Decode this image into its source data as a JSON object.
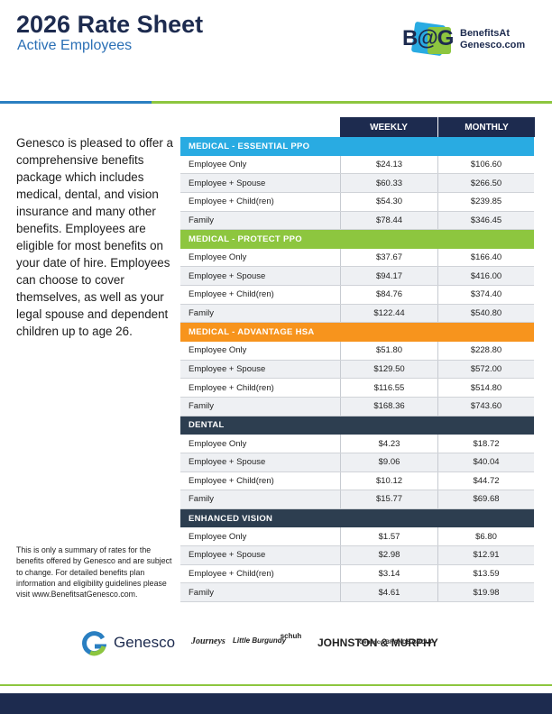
{
  "header": {
    "title": "2026 Rate Sheet",
    "subtitle": "Active Employees"
  },
  "logo": {
    "mark": "B@G",
    "line1": "BenefitsAt",
    "line2": "Genesco.com"
  },
  "intro": "Genesco is pleased to offer a comprehensive benefits package which includes medical, dental, and vision insurance and many other benefits. Employees are eligible for most benefits on your date of hire. Employees can choose to cover themselves, as well as your legal spouse and dependent children up to age 26.",
  "table": {
    "columns": [
      "WEEKLY",
      "MONTHLY"
    ],
    "sections": [
      {
        "name": "MEDICAL - ESSENTIAL PPO",
        "rows": [
          [
            "Employee Only",
            "$24.13",
            "$106.60"
          ],
          [
            "Employee + Spouse",
            "$60.33",
            "$266.50"
          ],
          [
            "Employee + Child(ren)",
            "$54.30",
            "$239.85"
          ],
          [
            "Family",
            "$78.44",
            "$346.45"
          ]
        ]
      },
      {
        "name": "MEDICAL - PROTECT PPO",
        "rows": [
          [
            "Employee Only",
            "$37.67",
            "$166.40"
          ],
          [
            "Employee + Spouse",
            "$94.17",
            "$416.00"
          ],
          [
            "Employee + Child(ren)",
            "$84.76",
            "$374.40"
          ],
          [
            "Family",
            "$122.44",
            "$540.80"
          ]
        ]
      },
      {
        "name": "MEDICAL - ADVANTAGE HSA",
        "rows": [
          [
            "Employee Only",
            "$51.80",
            "$228.80"
          ],
          [
            "Employee + Spouse",
            "$129.50",
            "$572.00"
          ],
          [
            "Employee + Child(ren)",
            "$116.55",
            "$514.80"
          ],
          [
            "Family",
            "$168.36",
            "$743.60"
          ]
        ]
      },
      {
        "name": "DENTAL",
        "rows": [
          [
            "Employee Only",
            "$4.23",
            "$18.72"
          ],
          [
            "Employee + Spouse",
            "$9.06",
            "$40.04"
          ],
          [
            "Employee + Child(ren)",
            "$10.12",
            "$44.72"
          ],
          [
            "Family",
            "$15.77",
            "$69.68"
          ]
        ]
      },
      {
        "name": "ENHANCED VISION",
        "rows": [
          [
            "Employee Only",
            "$1.57",
            "$6.80"
          ],
          [
            "Employee + Spouse",
            "$2.98",
            "$12.91"
          ],
          [
            "Employee + Child(ren)",
            "$3.14",
            "$13.59"
          ],
          [
            "Family",
            "$4.61",
            "$19.98"
          ]
        ]
      }
    ]
  },
  "footnote": "This is only a summary of rates for the benefits offered by Genesco and are subject to change. For detailed benefits plan information and eligibility guidelines please visit www.BenefitsatGenesco.com.",
  "brands": {
    "main": "Genesco",
    "others": [
      "Journeys",
      "Little Burgundy",
      "schuh",
      "JOHNSTON & MURPHY",
      "Genesco BRANDS GROUP"
    ]
  }
}
